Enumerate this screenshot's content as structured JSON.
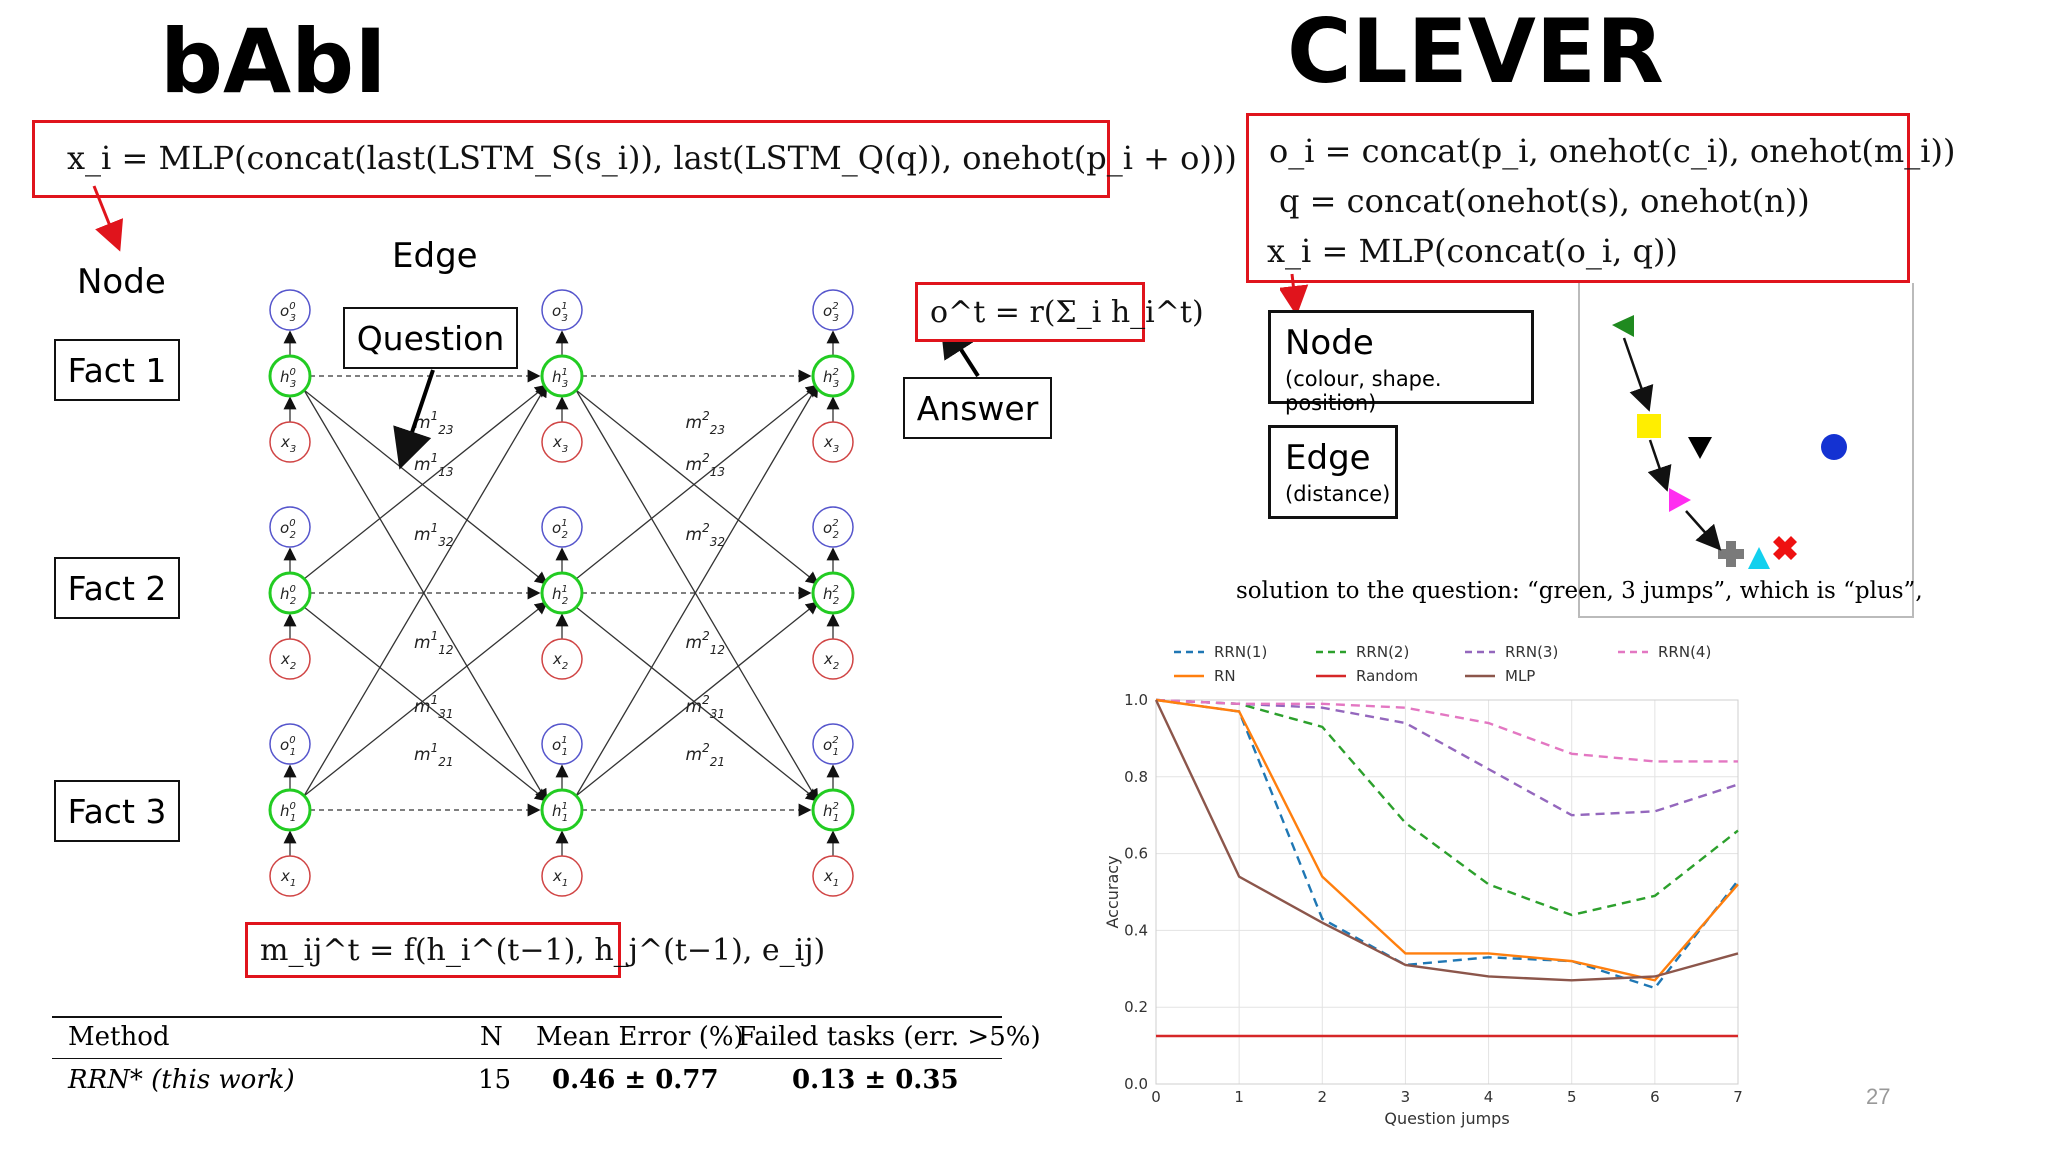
{
  "babi": {
    "title": "bAbI",
    "formula": "x_i = MLP(concat(last(LSTM_S(s_i)), last(LSTM_Q(q)), onehot(p_i + o)))",
    "node_label": "Node",
    "edge_label": "Edge",
    "question_label": "Question",
    "answer_label": "Answer",
    "facts": [
      "Fact 1",
      "Fact 2",
      "Fact 3"
    ],
    "output_formula": "o^t = r(Σ_i h_i^t)",
    "message_formula": "m_ij^t = f(h_i^(t−1), h_j^(t−1), e_ij)",
    "graph": {
      "layers": [
        "0",
        "1",
        "2"
      ],
      "rows": [
        "3",
        "2",
        "1"
      ],
      "messages_layer1": [
        "m123",
        "m113",
        "m132",
        "m112",
        "m131",
        "m121"
      ],
      "messages_layer2": [
        "m223",
        "m213",
        "m232",
        "m212",
        "m231",
        "m221"
      ]
    },
    "table": {
      "headers": [
        "Method",
        "N",
        "Mean Error (%)",
        "Failed tasks (err. >5%)"
      ],
      "rows": [
        [
          "RRN* (this work)",
          "15",
          "0.46 ± 0.77",
          "0.13 ± 0.35"
        ]
      ]
    }
  },
  "clever": {
    "title": "CLEVER",
    "formula_lines": [
      "o_i = concat(p_i, onehot(c_i), onehot(m_i))",
      "q = concat(onehot(s), onehot(n))",
      "x_i = MLP(concat(o_i, q))"
    ],
    "node_box": {
      "title": "Node",
      "subtitle": "(colour, shape. position)"
    },
    "edge_box": {
      "title": "Edge",
      "subtitle": "(distance)"
    },
    "caption": "solution to the question: “green, 3 jumps”, which is “plus”,",
    "scene_objects": [
      {
        "shape": "triangle-left",
        "color": "#1f8a1f"
      },
      {
        "shape": "square",
        "color": "#ffee00"
      },
      {
        "shape": "triangle-down",
        "color": "#000000"
      },
      {
        "shape": "circle",
        "color": "#1432d2"
      },
      {
        "shape": "triangle-right",
        "color": "#ff2df0"
      },
      {
        "shape": "plus",
        "color": "#7a7a7a"
      },
      {
        "shape": "triangle-up",
        "color": "#13d0ee"
      },
      {
        "shape": "cross",
        "color": "#ee1111"
      }
    ]
  },
  "chart_data": {
    "type": "line",
    "xlabel": "Question jumps",
    "ylabel": "Accuracy",
    "x": [
      0,
      1,
      2,
      3,
      4,
      5,
      6,
      7
    ],
    "xlim": [
      0,
      7
    ],
    "ylim": [
      0.0,
      1.0
    ],
    "yticks": [
      "0.0",
      "0.2",
      "0.4",
      "0.6",
      "0.8",
      "1.0"
    ],
    "grid": true,
    "legend_position": "top",
    "series": [
      {
        "name": "RRN(1)",
        "color": "#1f77b4",
        "style": "dashed",
        "values": [
          1.0,
          0.97,
          0.43,
          0.31,
          0.33,
          0.32,
          0.25,
          0.53
        ]
      },
      {
        "name": "RRN(2)",
        "color": "#2ca02c",
        "style": "dashed",
        "values": [
          1.0,
          0.99,
          0.93,
          0.68,
          0.52,
          0.44,
          0.49,
          0.66
        ]
      },
      {
        "name": "RRN(3)",
        "color": "#9467bd",
        "style": "dashed",
        "values": [
          1.0,
          0.99,
          0.98,
          0.94,
          0.82,
          0.7,
          0.71,
          0.78
        ]
      },
      {
        "name": "RRN(4)",
        "color": "#e377c2",
        "style": "dashed",
        "values": [
          1.0,
          0.99,
          0.99,
          0.98,
          0.94,
          0.86,
          0.84,
          0.84
        ]
      },
      {
        "name": "RN",
        "color": "#ff7f0e",
        "style": "solid",
        "values": [
          1.0,
          0.97,
          0.54,
          0.34,
          0.34,
          0.32,
          0.27,
          0.52
        ]
      },
      {
        "name": "Random",
        "color": "#d62728",
        "style": "solid",
        "values": [
          0.125,
          0.125,
          0.125,
          0.125,
          0.125,
          0.125,
          0.125,
          0.125
        ]
      },
      {
        "name": "MLP",
        "color": "#8c564b",
        "style": "solid",
        "values": [
          1.0,
          0.54,
          0.42,
          0.31,
          0.28,
          0.27,
          0.28,
          0.34
        ]
      }
    ]
  },
  "page_number": "27"
}
